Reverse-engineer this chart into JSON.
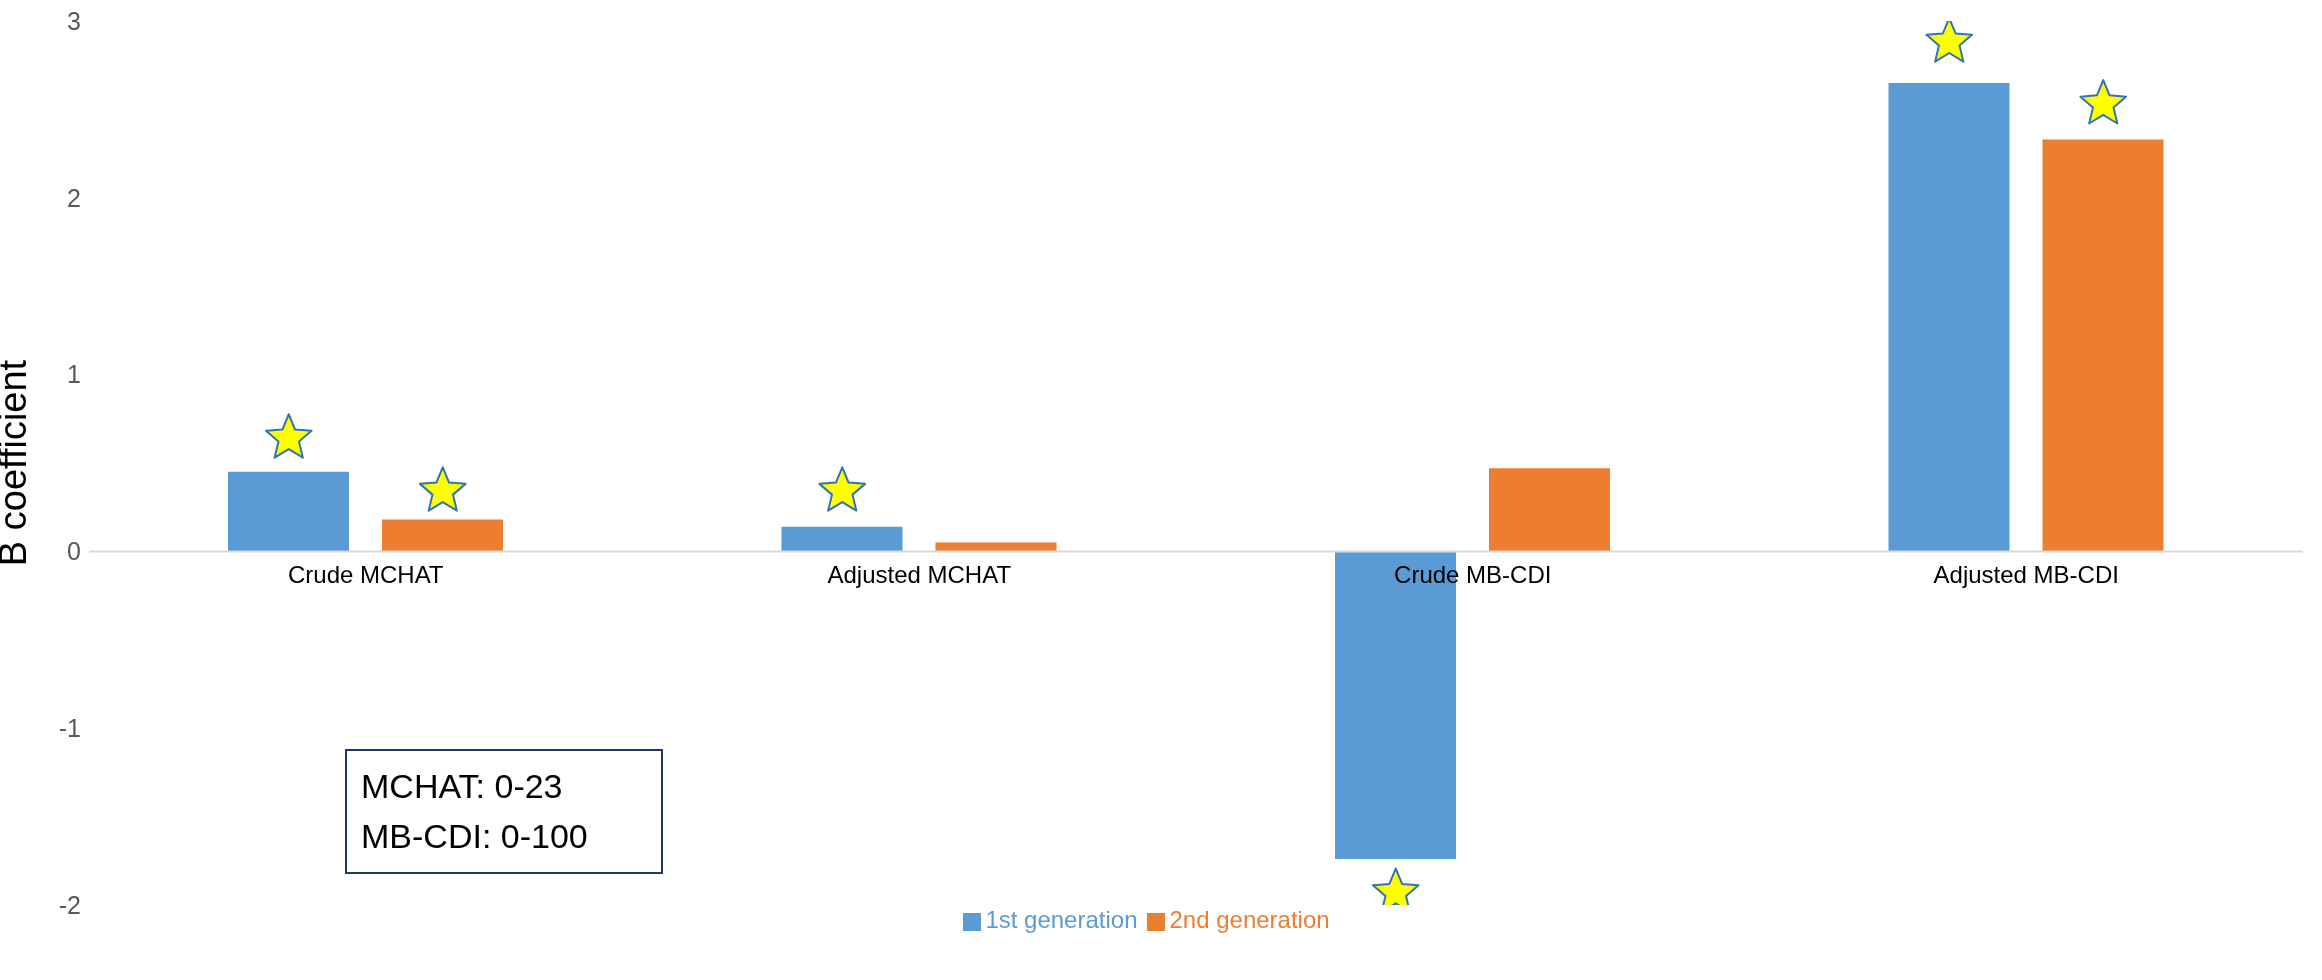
{
  "chart_data": {
    "type": "bar",
    "ylabel": "B coefficient",
    "categories": [
      "Crude MCHAT",
      "Adjusted MCHAT",
      "Crude MB-CDI",
      "Adjusted MB-CDI"
    ],
    "series": [
      {
        "name": "1st generation",
        "color": "#5b9bd5",
        "values": [
          0.45,
          0.14,
          -1.74,
          2.65
        ]
      },
      {
        "name": "2nd generation",
        "color": "#ed7d31",
        "values": [
          0.18,
          0.05,
          0.47,
          2.33
        ]
      },
      {
        "type": "scatter",
        "marker": "star",
        "color": "#ffff00",
        "x": [
          "Crude MCHAT",
          "Adjusted MCHAT",
          "Crude MB-CDI",
          "Adjusted MB-CDI"
        ],
        "values": [
          0.64,
          0.34,
          -1.93,
          2.88
        ]
      },
      {
        "type": "scatter",
        "marker": "star",
        "color": "#ffff00",
        "x": [
          "Crude MCHAT",
          "Adjusted MCHAT",
          "Crude MB-CDI",
          "Adjusted MB-CDI"
        ],
        "values": [
          0.34,
          null,
          null,
          2.53
        ]
      }
    ],
    "ylim": [
      -2,
      3
    ],
    "yticks": [
      -2,
      -1,
      0,
      1,
      2,
      3
    ],
    "grid": false,
    "legend": "bottom",
    "annotations": [
      "MCHAT: 0-23",
      "MB-CDI: 0-100"
    ]
  }
}
